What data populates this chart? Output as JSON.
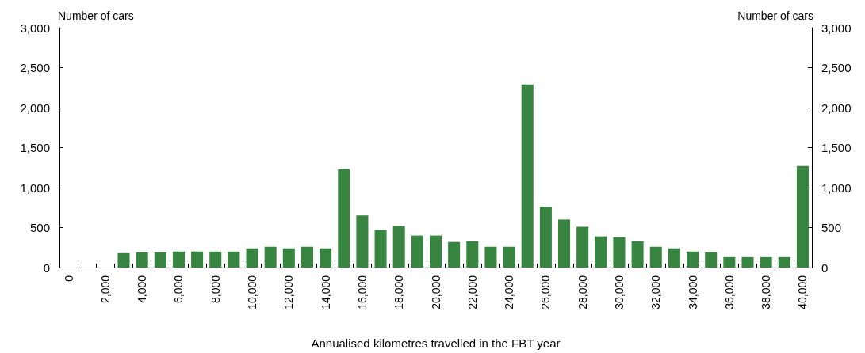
{
  "chart_data": {
    "type": "bar",
    "xlabel": "Annualised kilometres travelled in the FBT year",
    "ylabel": "Number of cars",
    "y2label": "Number of cars",
    "categories": [
      "0",
      null,
      "2,000",
      null,
      "4,000",
      null,
      "6,000",
      null,
      "8,000",
      null,
      "10,000",
      null,
      "12,000",
      null,
      "14,000",
      null,
      "16,000",
      null,
      "18,000",
      null,
      "20,000",
      null,
      "22,000",
      null,
      "24,000",
      null,
      "26,000",
      null,
      "28,000",
      null,
      "30,000",
      null,
      "32,000",
      null,
      "34,000",
      null,
      "36,000",
      null,
      "38,000",
      null,
      "40,000"
    ],
    "series": [
      {
        "color": "#378540",
        "values": [
          0,
          0,
          0,
          180,
          190,
          190,
          200,
          200,
          200,
          200,
          240,
          260,
          240,
          260,
          240,
          1230,
          650,
          470,
          520,
          400,
          400,
          320,
          330,
          260,
          260,
          2290,
          760,
          600,
          510,
          390,
          380,
          330,
          260,
          240,
          200,
          190,
          130,
          130,
          130,
          130,
          1270
        ]
      }
    ],
    "ylim": [
      0,
      3000
    ],
    "yticks": [
      {
        "value": 0,
        "label": "0"
      },
      {
        "value": 500,
        "label": "500"
      },
      {
        "value": 1000,
        "label": "1,000"
      },
      {
        "value": 1500,
        "label": "1,500"
      },
      {
        "value": 2000,
        "label": "2,000"
      },
      {
        "value": 2500,
        "label": "2,500"
      },
      {
        "value": 3000,
        "label": "3,000"
      }
    ],
    "y2lim": [
      0,
      3000
    ],
    "y2ticks": [
      {
        "value": 0,
        "label": "0"
      },
      {
        "value": 500,
        "label": "500"
      },
      {
        "value": 1000,
        "label": "1,000"
      },
      {
        "value": 1500,
        "label": "1,500"
      },
      {
        "value": 2000,
        "label": "2,000"
      },
      {
        "value": 2500,
        "label": "2,500"
      },
      {
        "value": 3000,
        "label": "3,000"
      }
    ],
    "grid": false
  }
}
